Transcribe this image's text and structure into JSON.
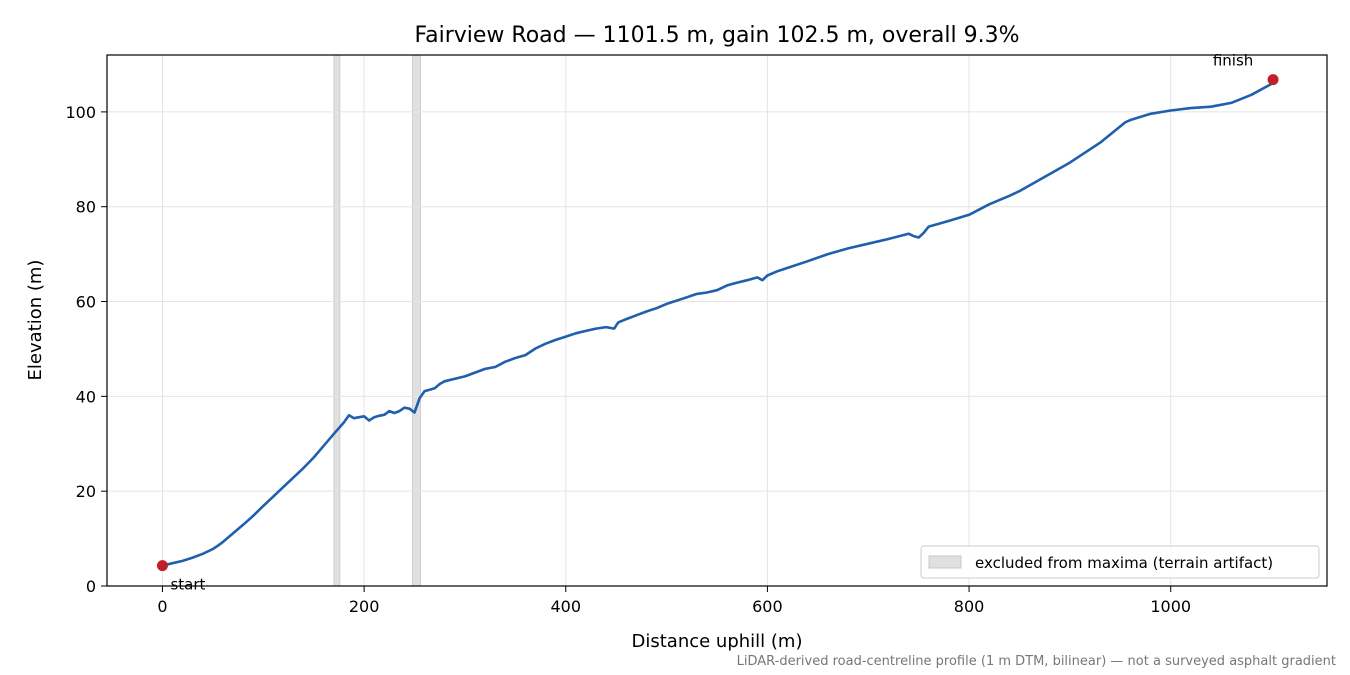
{
  "chart_data": {
    "type": "line",
    "title": "Fairview Road — 1101.5 m, gain 102.5 m, overall 9.3%",
    "xlabel": "Distance uphill (m)",
    "ylabel": "Elevation (m)",
    "xlim": [
      -55,
      1155
    ],
    "ylim": [
      0,
      112
    ],
    "xticks": [
      0,
      200,
      400,
      600,
      800,
      1000
    ],
    "yticks": [
      0,
      20,
      40,
      60,
      80,
      100
    ],
    "grid": true,
    "legend": {
      "placement": "lower-right",
      "entries": [
        {
          "label": "excluded from maxima (terrain artifact)",
          "color": "#e0e0e0"
        }
      ]
    },
    "excluded_regions": [
      [
        170,
        176
      ],
      [
        248,
        256
      ]
    ],
    "series": [
      {
        "color": "#1f5fad",
        "points": [
          [
            0,
            4.3
          ],
          [
            10,
            4.8
          ],
          [
            20,
            5.3
          ],
          [
            30,
            6.0
          ],
          [
            40,
            6.8
          ],
          [
            50,
            7.8
          ],
          [
            55,
            8.5
          ],
          [
            60,
            9.3
          ],
          [
            70,
            11.1
          ],
          [
            80,
            12.9
          ],
          [
            90,
            14.8
          ],
          [
            100,
            16.9
          ],
          [
            110,
            18.9
          ],
          [
            120,
            20.9
          ],
          [
            130,
            22.9
          ],
          [
            140,
            24.9
          ],
          [
            150,
            27.1
          ],
          [
            160,
            29.6
          ],
          [
            170,
            32.1
          ],
          [
            175,
            33.3
          ],
          [
            180,
            34.5
          ],
          [
            185,
            36.0
          ],
          [
            190,
            35.4
          ],
          [
            195,
            35.6
          ],
          [
            200,
            35.8
          ],
          [
            205,
            34.9
          ],
          [
            210,
            35.6
          ],
          [
            215,
            35.9
          ],
          [
            220,
            36.1
          ],
          [
            225,
            36.9
          ],
          [
            230,
            36.5
          ],
          [
            235,
            36.9
          ],
          [
            240,
            37.6
          ],
          [
            245,
            37.4
          ],
          [
            250,
            36.6
          ],
          [
            255,
            39.6
          ],
          [
            260,
            41.1
          ],
          [
            265,
            41.4
          ],
          [
            270,
            41.7
          ],
          [
            275,
            42.6
          ],
          [
            280,
            43.2
          ],
          [
            300,
            44.2
          ],
          [
            320,
            45.8
          ],
          [
            330,
            46.2
          ],
          [
            340,
            47.3
          ],
          [
            350,
            48.1
          ],
          [
            360,
            48.7
          ],
          [
            370,
            50.1
          ],
          [
            380,
            51.1
          ],
          [
            390,
            51.9
          ],
          [
            400,
            52.6
          ],
          [
            410,
            53.3
          ],
          [
            420,
            53.8
          ],
          [
            430,
            54.3
          ],
          [
            440,
            54.6
          ],
          [
            448,
            54.3
          ],
          [
            452,
            55.6
          ],
          [
            460,
            56.3
          ],
          [
            470,
            57.1
          ],
          [
            480,
            57.9
          ],
          [
            490,
            58.6
          ],
          [
            500,
            59.5
          ],
          [
            510,
            60.2
          ],
          [
            520,
            60.9
          ],
          [
            530,
            61.6
          ],
          [
            540,
            61.9
          ],
          [
            550,
            62.4
          ],
          [
            560,
            63.4
          ],
          [
            570,
            64.0
          ],
          [
            580,
            64.5
          ],
          [
            590,
            65.1
          ],
          [
            595,
            64.5
          ],
          [
            600,
            65.5
          ],
          [
            610,
            66.4
          ],
          [
            620,
            67.1
          ],
          [
            640,
            68.5
          ],
          [
            660,
            70.0
          ],
          [
            680,
            71.2
          ],
          [
            700,
            72.2
          ],
          [
            720,
            73.2
          ],
          [
            740,
            74.3
          ],
          [
            745,
            73.8
          ],
          [
            750,
            73.5
          ],
          [
            755,
            74.5
          ],
          [
            760,
            75.8
          ],
          [
            780,
            77.0
          ],
          [
            800,
            78.3
          ],
          [
            820,
            80.5
          ],
          [
            840,
            82.3
          ],
          [
            850,
            83.3
          ],
          [
            870,
            85.7
          ],
          [
            900,
            89.3
          ],
          [
            930,
            93.5
          ],
          [
            955,
            97.8
          ],
          [
            960,
            98.3
          ],
          [
            980,
            99.6
          ],
          [
            1000,
            100.3
          ],
          [
            1020,
            100.8
          ],
          [
            1040,
            101.1
          ],
          [
            1060,
            101.9
          ],
          [
            1080,
            103.6
          ],
          [
            1100,
            105.9
          ],
          [
            1101.5,
            106.8
          ]
        ]
      }
    ],
    "markers": [
      {
        "x": 0,
        "y": 4.3,
        "label": "start",
        "color": "#c0202a"
      },
      {
        "x": 1101.5,
        "y": 106.8,
        "label": "finish",
        "color": "#c0202a"
      }
    ],
    "footnote": "LiDAR-derived road-centreline profile (1 m DTM, bilinear) — not a surveyed asphalt gradient"
  }
}
